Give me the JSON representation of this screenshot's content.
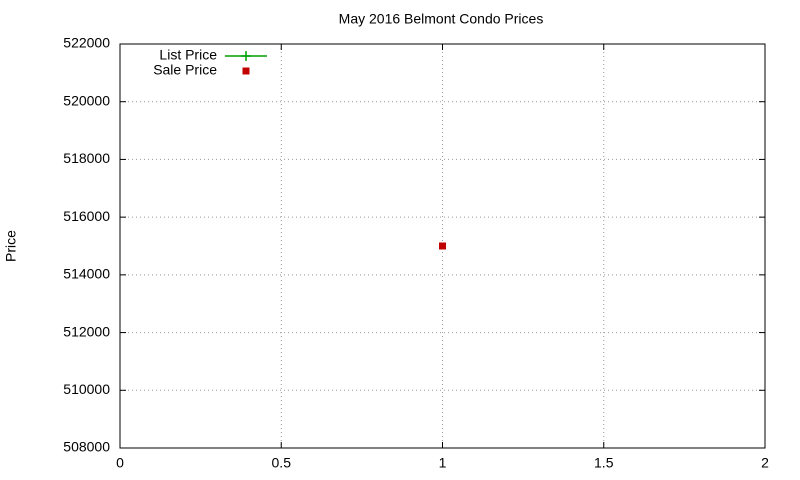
{
  "chart_data": {
    "type": "scatter",
    "title": "May 2016 Belmont Condo Prices",
    "y_label": "Price",
    "series": [
      {
        "name": "List Price",
        "color": "#00a000",
        "style": "linespoints",
        "x": [
          1
        ],
        "values": [
          null
        ]
      },
      {
        "name": "Sale Price",
        "color": "#c00000",
        "style": "points",
        "x": [
          1
        ],
        "values": [
          515000
        ]
      }
    ],
    "xlim": [
      0,
      2
    ],
    "xticks": [
      0,
      0.5,
      1,
      1.5,
      2
    ],
    "ylim": [
      508000,
      522000
    ],
    "yticks": [
      508000,
      510000,
      512000,
      514000,
      516000,
      518000,
      520000,
      522000
    ],
    "grid": true,
    "legend": "top-left"
  }
}
